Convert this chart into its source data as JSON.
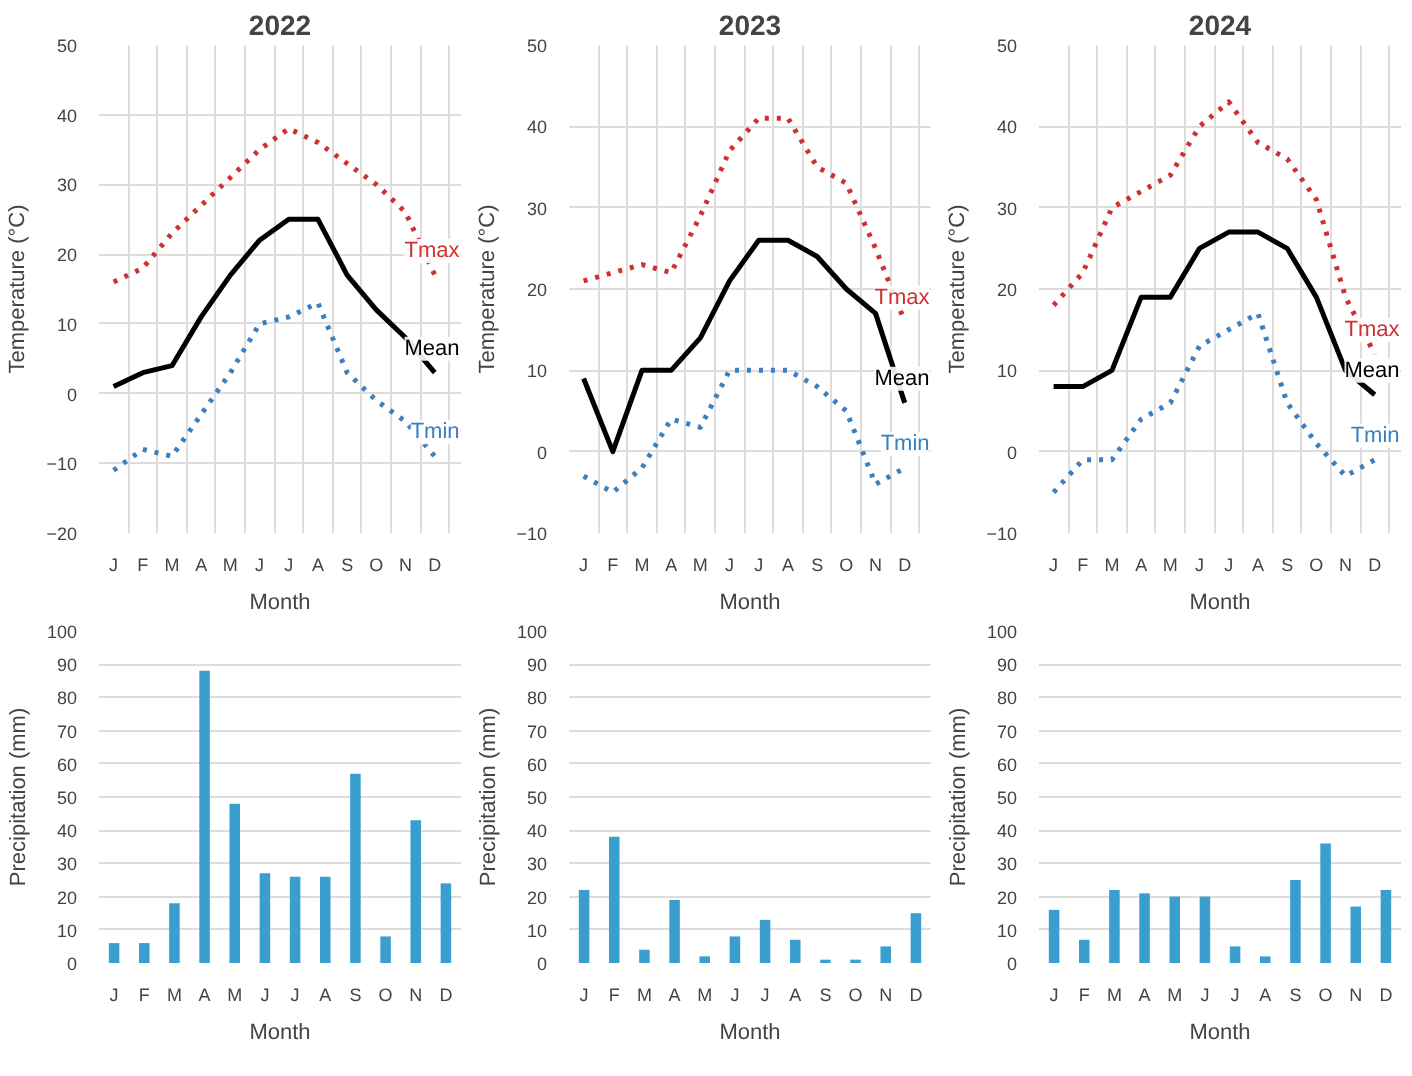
{
  "chart_data": [
    {
      "type": "line",
      "title": "2022",
      "xlabel": "Month",
      "ylabel": "Temperature (°C)",
      "categories": [
        "J",
        "F",
        "M",
        "A",
        "M",
        "J",
        "J",
        "A",
        "S",
        "O",
        "N",
        "D"
      ],
      "ylim": [
        -20,
        50
      ],
      "yticks": [
        -20,
        -10,
        0,
        10,
        20,
        30,
        40,
        50
      ],
      "grid": true,
      "series": [
        {
          "name": "Tmax",
          "color": "#d03030",
          "line_style": "dotted",
          "values": [
            16,
            18,
            23,
            27,
            31,
            35,
            38,
            36,
            33,
            30,
            26,
            17
          ]
        },
        {
          "name": "Mean",
          "color": "#000000",
          "line_style": "solid",
          "values": [
            1,
            3,
            4,
            11,
            17,
            22,
            25,
            25,
            17,
            12,
            8,
            3
          ]
        },
        {
          "name": "Tmin",
          "color": "#3a7fc0",
          "line_style": "dotted",
          "values": [
            -11,
            -8,
            -9,
            -3,
            3,
            10,
            11,
            13,
            3,
            -1,
            -4,
            -9
          ]
        }
      ]
    },
    {
      "type": "line",
      "title": "2023",
      "xlabel": "Month",
      "ylabel": "Temperature (°C)",
      "categories": [
        "J",
        "F",
        "M",
        "A",
        "M",
        "J",
        "J",
        "A",
        "S",
        "O",
        "N",
        "D"
      ],
      "ylim": [
        -10,
        50
      ],
      "yticks": [
        -10,
        0,
        10,
        20,
        30,
        40,
        50
      ],
      "grid": true,
      "series": [
        {
          "name": "Tmax",
          "color": "#d03030",
          "line_style": "dotted",
          "values": [
            21,
            22,
            23,
            22,
            29,
            37,
            41,
            41,
            35,
            33,
            25,
            16
          ]
        },
        {
          "name": "Mean",
          "color": "#000000",
          "line_style": "solid",
          "values": [
            9,
            0,
            10,
            10,
            14,
            21,
            26,
            26,
            24,
            20,
            17,
            6
          ]
        },
        {
          "name": "Tmin",
          "color": "#3a7fc0",
          "line_style": "dotted",
          "values": [
            -3,
            -5,
            -2,
            4,
            3,
            10,
            10,
            10,
            8,
            5,
            -4,
            -2
          ]
        }
      ]
    },
    {
      "type": "line",
      "title": "2024",
      "xlabel": "Month",
      "ylabel": "Temperature (°C)",
      "categories": [
        "J",
        "F",
        "M",
        "A",
        "M",
        "J",
        "J",
        "A",
        "S",
        "O",
        "N",
        "D"
      ],
      "ylim": [
        -10,
        50
      ],
      "yticks": [
        -10,
        0,
        10,
        20,
        30,
        40,
        50
      ],
      "grid": true,
      "series": [
        {
          "name": "Tmax",
          "color": "#d03030",
          "line_style": "dotted",
          "values": [
            18,
            22,
            30,
            32,
            34,
            40,
            43,
            38,
            36,
            31,
            19,
            12
          ]
        },
        {
          "name": "Mean",
          "color": "#000000",
          "line_style": "solid",
          "values": [
            8,
            8,
            10,
            19,
            19,
            25,
            27,
            27,
            25,
            19,
            10,
            7
          ]
        },
        {
          "name": "Tmin",
          "color": "#3a7fc0",
          "line_style": "dotted",
          "values": [
            -5,
            -1,
            -1,
            4,
            6,
            13,
            15,
            17,
            6,
            1,
            -3,
            -1
          ]
        }
      ]
    },
    {
      "type": "bar",
      "xlabel": "Month",
      "ylabel": "Precipitation (mm)",
      "categories": [
        "J",
        "F",
        "M",
        "A",
        "M",
        "J",
        "J",
        "A",
        "S",
        "O",
        "N",
        "D"
      ],
      "ylim": [
        0,
        100
      ],
      "yticks": [
        0,
        10,
        20,
        30,
        40,
        50,
        60,
        70,
        80,
        90,
        100
      ],
      "grid": "y",
      "color": "#3a9fcf",
      "values": [
        6,
        6,
        18,
        88,
        48,
        27,
        26,
        26,
        57,
        8,
        43,
        24
      ]
    },
    {
      "type": "bar",
      "xlabel": "Month",
      "ylabel": "Precipitation (mm)",
      "categories": [
        "J",
        "F",
        "M",
        "A",
        "M",
        "J",
        "J",
        "A",
        "S",
        "O",
        "N",
        "D"
      ],
      "ylim": [
        0,
        100
      ],
      "yticks": [
        0,
        10,
        20,
        30,
        40,
        50,
        60,
        70,
        80,
        90,
        100
      ],
      "grid": "y",
      "color": "#3a9fcf",
      "values": [
        22,
        38,
        4,
        19,
        2,
        8,
        13,
        7,
        1,
        1,
        5,
        15
      ]
    },
    {
      "type": "bar",
      "xlabel": "Month",
      "ylabel": "Precipitation (mm)",
      "categories": [
        "J",
        "F",
        "M",
        "A",
        "M",
        "J",
        "J",
        "A",
        "S",
        "O",
        "N",
        "D"
      ],
      "ylim": [
        0,
        100
      ],
      "yticks": [
        0,
        10,
        20,
        30,
        40,
        50,
        60,
        70,
        80,
        90,
        100
      ],
      "grid": "y",
      "color": "#3a9fcf",
      "values": [
        16,
        7,
        22,
        21,
        20,
        20,
        5,
        2,
        25,
        36,
        17,
        22
      ]
    }
  ]
}
